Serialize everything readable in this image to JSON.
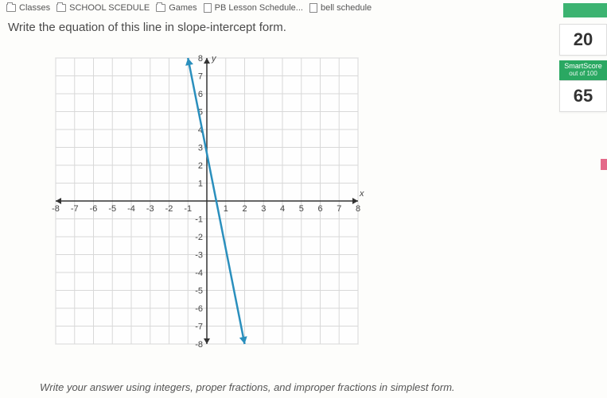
{
  "bookmarks": [
    {
      "label": "Classes",
      "icon": "folder"
    },
    {
      "label": "SCHOOL SCEDULE",
      "icon": "folder"
    },
    {
      "label": "Games",
      "icon": "folder"
    },
    {
      "label": "PB Lesson Schedule...",
      "icon": "doc"
    },
    {
      "label": "bell schedule",
      "icon": "doc"
    }
  ],
  "question": "Write the equation of this line in slope-intercept form.",
  "footer": "Write your answer using integers, proper fractions, and improper fractions in simplest form.",
  "score": {
    "questions": "20",
    "smartscore_title": "SmartScore",
    "smartscore_sub": "out of 100",
    "smartscore_val": "65"
  },
  "chart": {
    "type": "line",
    "xmin": -8,
    "xmax": 8,
    "ymin": -8,
    "ymax": 8,
    "xtick_step": 1,
    "ytick_step": 1,
    "xlabel": "x",
    "ylabel": "y",
    "grid_color": "#d8d8d8",
    "grid_major_color": "#bfbfbf",
    "axis_color": "#333333",
    "background_color": "#fefefe",
    "tick_label_color": "#444444",
    "tick_fontsize": 11,
    "line": {
      "points": [
        [
          -1,
          8
        ],
        [
          2,
          -8
        ]
      ],
      "color": "#2a8fbd",
      "width": 2.5,
      "arrows": true
    }
  }
}
